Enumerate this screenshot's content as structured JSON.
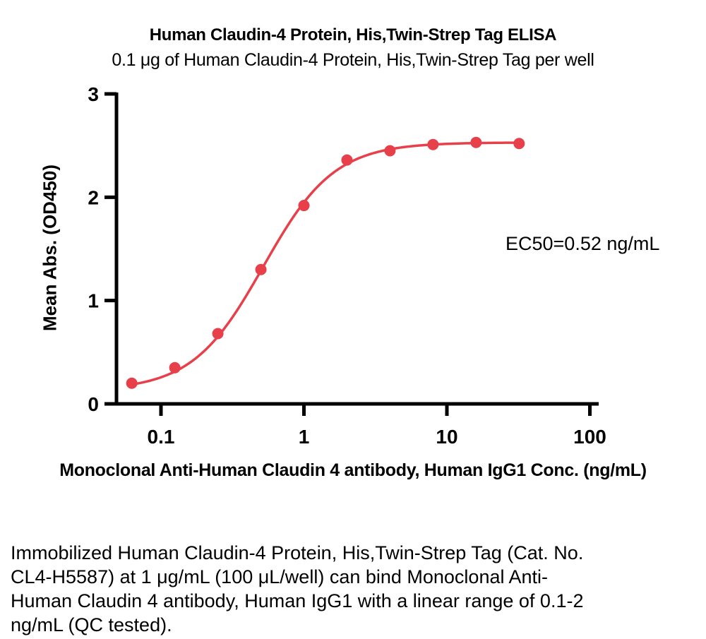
{
  "chart_data": {
    "type": "scatter",
    "title": "Human Claudin-4 Protein, His,Twin-Strep Tag ELISA",
    "subtitle": "0.1 μg of Human Claudin-4 Protein, His,Twin-Strep Tag per well",
    "xlabel": "Monoclonal Anti-Human Claudin 4 antibody, Human IgG1 Conc. (ng/mL)",
    "ylabel": "Mean Abs. (OD450)",
    "annotation": "EC50=0.52 ng/mL",
    "x_scale": "log",
    "x": [
      0.0625,
      0.125,
      0.25,
      0.5,
      1,
      2,
      4,
      8,
      16,
      32
    ],
    "y": [
      0.2,
      0.35,
      0.68,
      1.3,
      1.92,
      2.36,
      2.45,
      2.51,
      2.53,
      2.52
    ],
    "x_ticks": [
      0.1,
      1,
      10,
      100
    ],
    "x_tick_labels": [
      "0.1",
      "1",
      "10",
      "100"
    ],
    "y_ticks": [
      0,
      1,
      2,
      3
    ],
    "y_tick_labels": [
      "0",
      "1",
      "2",
      "3"
    ],
    "ylim": [
      0,
      3
    ],
    "xlim": [
      0.049,
      115
    ],
    "grid": false,
    "legend": "none",
    "curve_fit": {
      "model": "4PL",
      "bottom": 0.13,
      "top": 2.53,
      "ec50": 0.52,
      "hill": 1.75
    },
    "marker_color": "#E8404A",
    "line_color": "#E8404A",
    "axis_color": "#000000"
  },
  "caption": {
    "lines": [
      "Immobilized Human Claudin-4 Protein, His,Twin-Strep Tag (Cat. No.",
      "CL4-H5587) at 1 μg/mL (100 μL/well) can bind Monoclonal Anti-",
      "Human Claudin 4 antibody, Human IgG1 with a linear range of 0.1-2",
      "ng/mL (QC tested)."
    ]
  }
}
